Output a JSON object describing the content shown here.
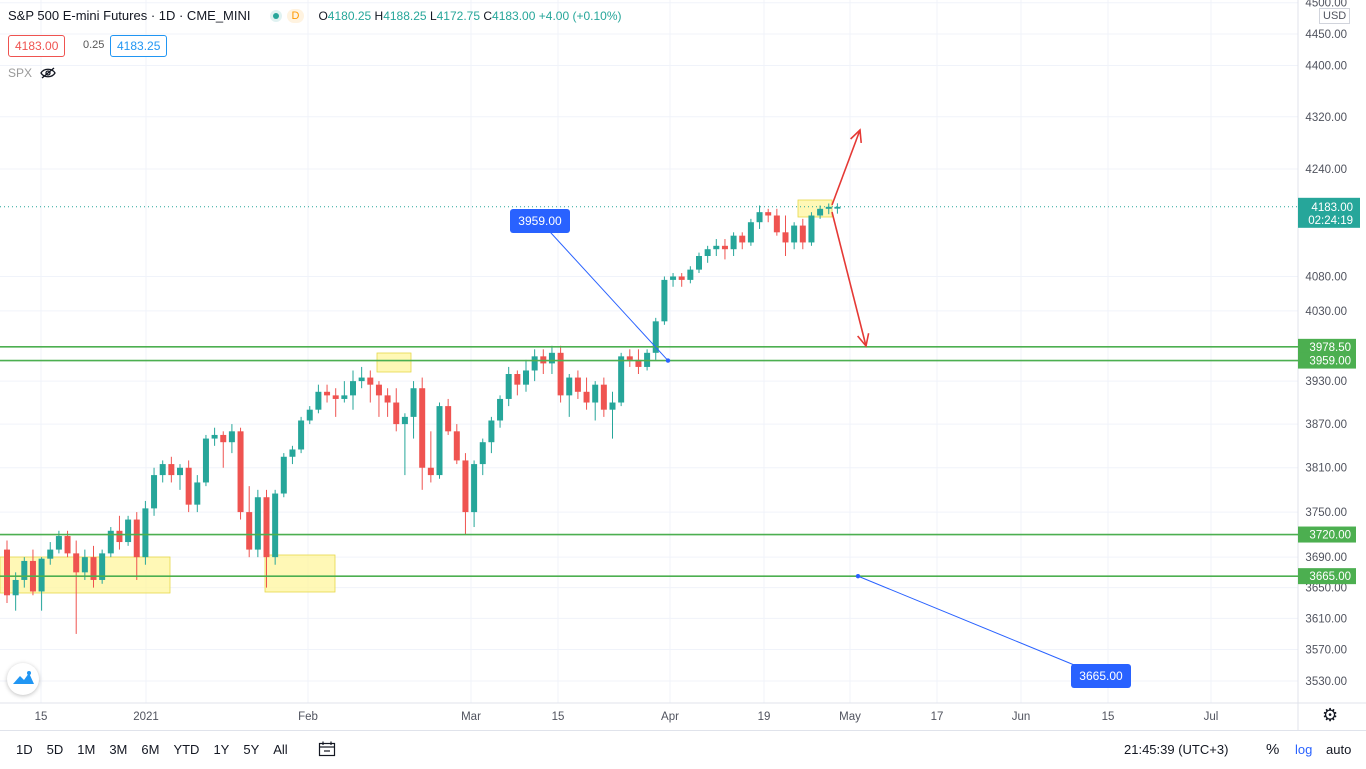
{
  "header": {
    "title": "S&P 500 E-mini Futures · 1D · CME_MINI",
    "d_badge": "D",
    "ohlc": {
      "o_label": "O",
      "o": "4180.25",
      "h_label": "H",
      "h": "4188.25",
      "l_label": "L",
      "l": "4172.75",
      "c_label": "C",
      "c": "4183.00",
      "change": "+4.00 (+0.10%)"
    }
  },
  "quote": {
    "bid": "4183.00",
    "spread": "0.25",
    "ask": "4183.25"
  },
  "overlay": {
    "symbol": "SPX",
    "icon": "eye-crossed-icon"
  },
  "currency_label": "USD",
  "price_axis": {
    "ticks": [
      "4500.00",
      "4450.00",
      "4400.00",
      "4320.00",
      "4240.00",
      "4080.00",
      "4030.00",
      "3930.00",
      "3870.00",
      "3810.00",
      "3750.00",
      "3690.00",
      "3650.00",
      "3610.00",
      "3570.00",
      "3530.00"
    ],
    "scale": "log"
  },
  "time_axis": {
    "ticks": [
      "15",
      "2021",
      "Feb",
      "Mar",
      "15",
      "Apr",
      "19",
      "May",
      "17",
      "Jun",
      "15",
      "Jul"
    ]
  },
  "price_labels": {
    "last": "4183.00",
    "countdown": "02:24:19",
    "levels": [
      "3978.50",
      "3959.00",
      "3720.00",
      "3665.00"
    ]
  },
  "callouts": [
    {
      "text": "3959.00",
      "color": "#2962ff"
    },
    {
      "text": "3665.00",
      "color": "#2962ff"
    }
  ],
  "bottom_bar": {
    "ranges": [
      "1D",
      "5D",
      "1M",
      "3M",
      "6M",
      "YTD",
      "1Y",
      "5Y",
      "All"
    ],
    "calendar_icon": "calendar-goto-icon",
    "clock": "21:45:39 (UTC+3)",
    "percent": "%",
    "log": "log",
    "auto": "auto"
  },
  "colors": {
    "up": "#26a69a",
    "down": "#ef5350",
    "level": "#4caf50",
    "callout": "#2962ff",
    "arrow": "#e53935",
    "highlight": "#fff59d"
  },
  "chart_data": {
    "type": "candlestick",
    "scale": "log",
    "ylim": [
      3500,
      4520
    ],
    "levels": [
      3978.5,
      3959.0,
      3720.0,
      3665.0
    ],
    "candles": [
      {
        "o": 3700,
        "h": 3712,
        "l": 3630,
        "c": 3640
      },
      {
        "o": 3640,
        "h": 3670,
        "l": 3620,
        "c": 3660
      },
      {
        "o": 3660,
        "h": 3690,
        "l": 3650,
        "c": 3685
      },
      {
        "o": 3685,
        "h": 3700,
        "l": 3640,
        "c": 3645
      },
      {
        "o": 3645,
        "h": 3690,
        "l": 3620,
        "c": 3688
      },
      {
        "o": 3688,
        "h": 3710,
        "l": 3680,
        "c": 3700
      },
      {
        "o": 3700,
        "h": 3725,
        "l": 3695,
        "c": 3718
      },
      {
        "o": 3718,
        "h": 3725,
        "l": 3690,
        "c": 3695
      },
      {
        "o": 3695,
        "h": 3712,
        "l": 3590,
        "c": 3670
      },
      {
        "o": 3670,
        "h": 3700,
        "l": 3660,
        "c": 3690
      },
      {
        "o": 3690,
        "h": 3705,
        "l": 3650,
        "c": 3660
      },
      {
        "o": 3660,
        "h": 3700,
        "l": 3655,
        "c": 3695
      },
      {
        "o": 3695,
        "h": 3730,
        "l": 3690,
        "c": 3725
      },
      {
        "o": 3725,
        "h": 3745,
        "l": 3700,
        "c": 3710
      },
      {
        "o": 3710,
        "h": 3745,
        "l": 3705,
        "c": 3740
      },
      {
        "o": 3740,
        "h": 3750,
        "l": 3660,
        "c": 3690
      },
      {
        "o": 3690,
        "h": 3765,
        "l": 3680,
        "c": 3755
      },
      {
        "o": 3755,
        "h": 3810,
        "l": 3745,
        "c": 3800
      },
      {
        "o": 3800,
        "h": 3820,
        "l": 3790,
        "c": 3815
      },
      {
        "o": 3815,
        "h": 3825,
        "l": 3790,
        "c": 3800
      },
      {
        "o": 3800,
        "h": 3815,
        "l": 3780,
        "c": 3810
      },
      {
        "o": 3810,
        "h": 3820,
        "l": 3750,
        "c": 3760
      },
      {
        "o": 3760,
        "h": 3800,
        "l": 3750,
        "c": 3790
      },
      {
        "o": 3790,
        "h": 3855,
        "l": 3785,
        "c": 3850
      },
      {
        "o": 3850,
        "h": 3865,
        "l": 3840,
        "c": 3855
      },
      {
        "o": 3855,
        "h": 3860,
        "l": 3810,
        "c": 3845
      },
      {
        "o": 3845,
        "h": 3870,
        "l": 3830,
        "c": 3860
      },
      {
        "o": 3860,
        "h": 3865,
        "l": 3740,
        "c": 3750
      },
      {
        "o": 3750,
        "h": 3785,
        "l": 3690,
        "c": 3700
      },
      {
        "o": 3700,
        "h": 3780,
        "l": 3690,
        "c": 3770
      },
      {
        "o": 3770,
        "h": 3780,
        "l": 3650,
        "c": 3690
      },
      {
        "o": 3690,
        "h": 3780,
        "l": 3680,
        "c": 3775
      },
      {
        "o": 3775,
        "h": 3830,
        "l": 3770,
        "c": 3825
      },
      {
        "o": 3825,
        "h": 3840,
        "l": 3815,
        "c": 3835
      },
      {
        "o": 3835,
        "h": 3880,
        "l": 3830,
        "c": 3875
      },
      {
        "o": 3875,
        "h": 3895,
        "l": 3870,
        "c": 3890
      },
      {
        "o": 3890,
        "h": 3925,
        "l": 3885,
        "c": 3915
      },
      {
        "o": 3915,
        "h": 3925,
        "l": 3900,
        "c": 3910
      },
      {
        "o": 3910,
        "h": 3920,
        "l": 3880,
        "c": 3905
      },
      {
        "o": 3905,
        "h": 3930,
        "l": 3900,
        "c": 3910
      },
      {
        "o": 3910,
        "h": 3945,
        "l": 3890,
        "c": 3930
      },
      {
        "o": 3930,
        "h": 3950,
        "l": 3920,
        "c": 3935
      },
      {
        "o": 3935,
        "h": 3945,
        "l": 3900,
        "c": 3925
      },
      {
        "o": 3925,
        "h": 3930,
        "l": 3880,
        "c": 3910
      },
      {
        "o": 3910,
        "h": 3920,
        "l": 3880,
        "c": 3900
      },
      {
        "o": 3900,
        "h": 3920,
        "l": 3860,
        "c": 3870
      },
      {
        "o": 3870,
        "h": 3885,
        "l": 3800,
        "c": 3880
      },
      {
        "o": 3880,
        "h": 3930,
        "l": 3850,
        "c": 3920
      },
      {
        "o": 3920,
        "h": 3935,
        "l": 3780,
        "c": 3810
      },
      {
        "o": 3810,
        "h": 3860,
        "l": 3790,
        "c": 3800
      },
      {
        "o": 3800,
        "h": 3900,
        "l": 3795,
        "c": 3895
      },
      {
        "o": 3895,
        "h": 3905,
        "l": 3855,
        "c": 3860
      },
      {
        "o": 3860,
        "h": 3870,
        "l": 3815,
        "c": 3820
      },
      {
        "o": 3820,
        "h": 3830,
        "l": 3720,
        "c": 3750
      },
      {
        "o": 3750,
        "h": 3820,
        "l": 3730,
        "c": 3815
      },
      {
        "o": 3815,
        "h": 3850,
        "l": 3800,
        "c": 3845
      },
      {
        "o": 3845,
        "h": 3880,
        "l": 3830,
        "c": 3875
      },
      {
        "o": 3875,
        "h": 3910,
        "l": 3865,
        "c": 3905
      },
      {
        "o": 3905,
        "h": 3950,
        "l": 3895,
        "c": 3940
      },
      {
        "o": 3940,
        "h": 3945,
        "l": 3910,
        "c": 3925
      },
      {
        "o": 3925,
        "h": 3960,
        "l": 3915,
        "c": 3945
      },
      {
        "o": 3945,
        "h": 3975,
        "l": 3930,
        "c": 3965
      },
      {
        "o": 3965,
        "h": 3975,
        "l": 3940,
        "c": 3955
      },
      {
        "o": 3955,
        "h": 3980,
        "l": 3940,
        "c": 3970
      },
      {
        "o": 3970,
        "h": 3980,
        "l": 3900,
        "c": 3910
      },
      {
        "o": 3910,
        "h": 3940,
        "l": 3880,
        "c": 3935
      },
      {
        "o": 3935,
        "h": 3945,
        "l": 3905,
        "c": 3915
      },
      {
        "o": 3915,
        "h": 3935,
        "l": 3890,
        "c": 3900
      },
      {
        "o": 3900,
        "h": 3930,
        "l": 3875,
        "c": 3925
      },
      {
        "o": 3925,
        "h": 3935,
        "l": 3880,
        "c": 3890
      },
      {
        "o": 3890,
        "h": 3915,
        "l": 3850,
        "c": 3900
      },
      {
        "o": 3900,
        "h": 3970,
        "l": 3895,
        "c": 3965
      },
      {
        "o": 3965,
        "h": 3975,
        "l": 3950,
        "c": 3960
      },
      {
        "o": 3960,
        "h": 3975,
        "l": 3940,
        "c": 3950
      },
      {
        "o": 3950,
        "h": 3975,
        "l": 3945,
        "c": 3970
      },
      {
        "o": 3970,
        "h": 4020,
        "l": 3960,
        "c": 4015
      },
      {
        "o": 4015,
        "h": 4080,
        "l": 4010,
        "c": 4075
      },
      {
        "o": 4075,
        "h": 4085,
        "l": 4065,
        "c": 4080
      },
      {
        "o": 4080,
        "h": 4085,
        "l": 4065,
        "c": 4075
      },
      {
        "o": 4075,
        "h": 4095,
        "l": 4070,
        "c": 4090
      },
      {
        "o": 4090,
        "h": 4115,
        "l": 4085,
        "c": 4110
      },
      {
        "o": 4110,
        "h": 4125,
        "l": 4100,
        "c": 4120
      },
      {
        "o": 4120,
        "h": 4135,
        "l": 4110,
        "c": 4125
      },
      {
        "o": 4125,
        "h": 4135,
        "l": 4105,
        "c": 4120
      },
      {
        "o": 4120,
        "h": 4145,
        "l": 4110,
        "c": 4140
      },
      {
        "o": 4140,
        "h": 4145,
        "l": 4120,
        "c": 4130
      },
      {
        "o": 4130,
        "h": 4165,
        "l": 4125,
        "c": 4160
      },
      {
        "o": 4160,
        "h": 4185,
        "l": 4150,
        "c": 4175
      },
      {
        "o": 4175,
        "h": 4180,
        "l": 4160,
        "c": 4170
      },
      {
        "o": 4170,
        "h": 4180,
        "l": 4140,
        "c": 4145
      },
      {
        "o": 4145,
        "h": 4170,
        "l": 4110,
        "c": 4130
      },
      {
        "o": 4130,
        "h": 4160,
        "l": 4120,
        "c": 4155
      },
      {
        "o": 4155,
        "h": 4165,
        "l": 4120,
        "c": 4130
      },
      {
        "o": 4130,
        "h": 4175,
        "l": 4125,
        "c": 4170
      },
      {
        "o": 4170,
        "h": 4185,
        "l": 4165,
        "c": 4180
      },
      {
        "o": 4180,
        "h": 4188,
        "l": 4172,
        "c": 4183
      },
      {
        "o": 4180.25,
        "h": 4188.25,
        "l": 4172.75,
        "c": 4183.0
      }
    ]
  }
}
